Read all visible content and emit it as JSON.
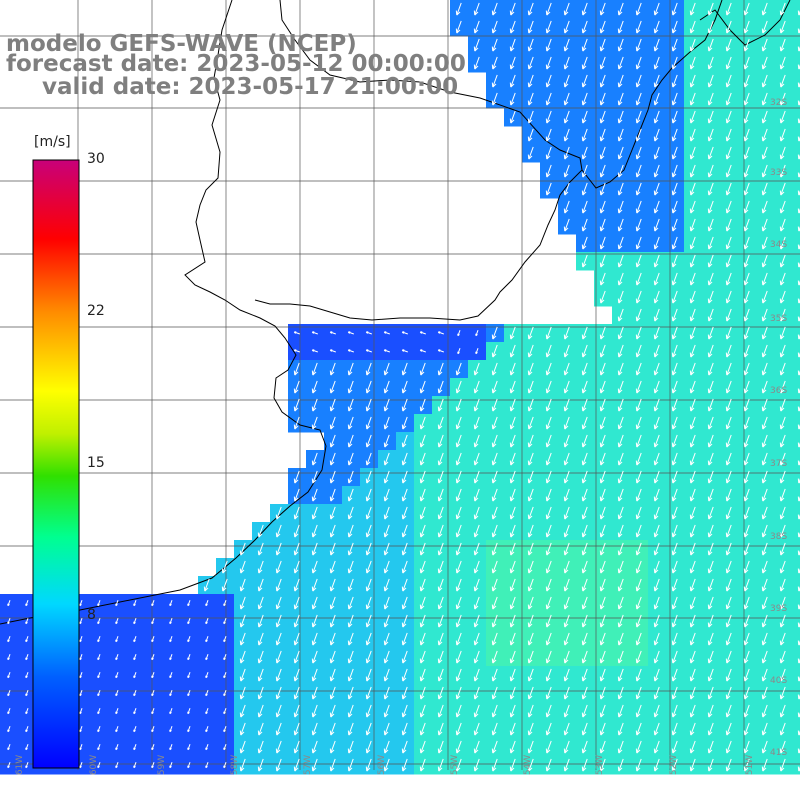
{
  "title": {
    "model": "modelo GEFS-WAVE (NCEP)",
    "forecast_date": "forecast date: 2023-05-12 00:00:00",
    "valid_date": "valid date: 2023-05-17 21:00:00"
  },
  "colorbar": {
    "unit": "[m/s]",
    "ticks": [
      "30",
      "22",
      "15",
      "8"
    ],
    "range": [
      0,
      30
    ],
    "colors": [
      "#0000ff",
      "#00c8ff",
      "#00ff96",
      "#00e600",
      "#ffff00",
      "#ff8c00",
      "#ff0000",
      "#c80078"
    ]
  },
  "map": {
    "field_colors": {
      "weak": "#1a4fff",
      "low": "#1880ff",
      "mid": "#24c8ee",
      "high": "#30e8d0",
      "peak": "#40f0b8"
    },
    "land_color": "#ffffff",
    "coast_color": "#000000",
    "arrow_color": "#ffffff",
    "grid_color": "#555555",
    "lat_labels": [
      "32S",
      "33S",
      "34S",
      "35S",
      "36S",
      "37S",
      "38S",
      "39S",
      "40S",
      "41S"
    ],
    "lon_labels": [
      "61W",
      "60W",
      "59W",
      "58W",
      "57W",
      "56W",
      "55W",
      "54W",
      "53W",
      "52W",
      "51W"
    ]
  }
}
